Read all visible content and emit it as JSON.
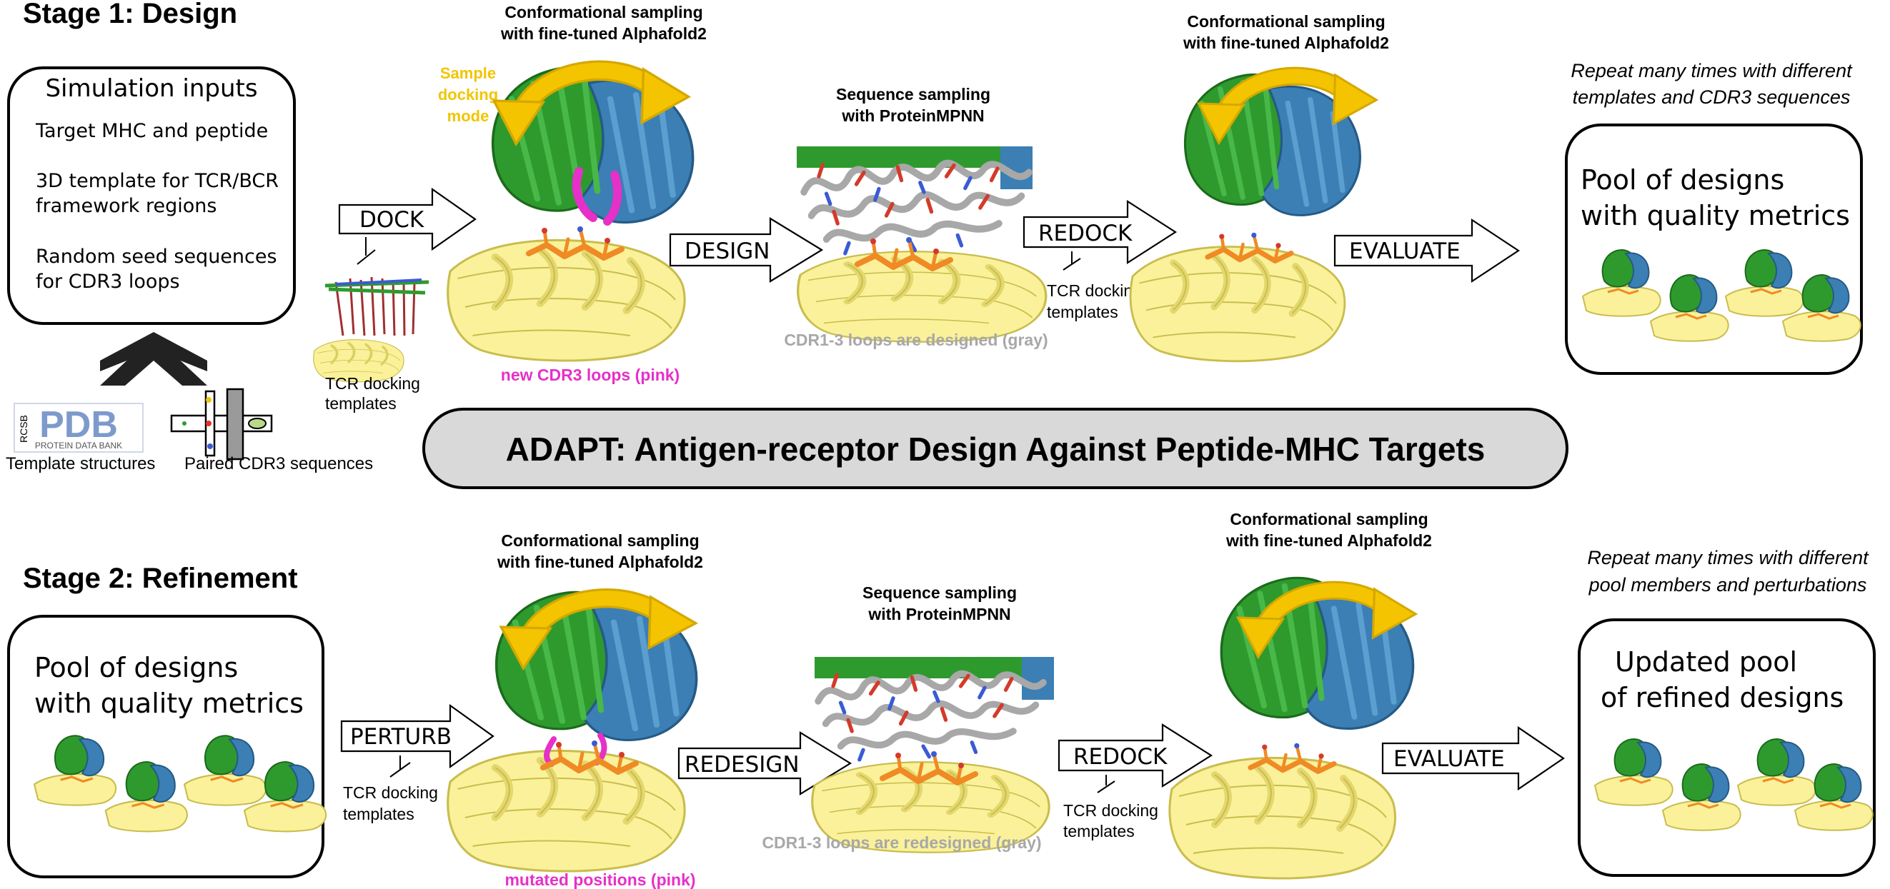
{
  "title": "ADAPT: Antigen-receptor Design Against Peptide-MHC Targets",
  "stage1": {
    "heading": "Stage 1: Design",
    "inputs_box": {
      "title": "Simulation inputs",
      "items": [
        [
          "Target MHC and peptide"
        ],
        [
          "3D template for TCR/BCR",
          "framework regions"
        ],
        [
          "Random seed sequences",
          "for CDR3 loops"
        ]
      ]
    },
    "sources": {
      "pdb_logo_text": "PDB",
      "pdb_logo_rcsb": "RCSB",
      "pdb_logo_sub": "PROTEIN DATA BANK",
      "pdb_caption": "Template structures",
      "cdr3_caption": "Paired CDR3 sequences"
    },
    "dock_label": "DOCK",
    "dock_templates": [
      "TCR docking",
      "templates"
    ],
    "conf_sampling_1": [
      "Conformational sampling",
      "with fine-tuned Alphafold2"
    ],
    "sample_docking_mode": [
      "Sample",
      "docking",
      "mode"
    ],
    "new_cdr3_note": "new CDR3 loops (pink)",
    "design_label": "DESIGN",
    "seq_sampling": [
      "Sequence sampling",
      "with ProteinMPNN"
    ],
    "cdr_designed_note": "CDR1-3 loops are designed (gray)",
    "redock_label": "REDOCK",
    "redock_templates": [
      "TCR docking",
      "templates"
    ],
    "conf_sampling_2": [
      "Conformational sampling",
      "with fine-tuned Alphafold2"
    ],
    "evaluate_label": "EVALUATE",
    "repeat_note": [
      "Repeat many times with different",
      "templates and CDR3 sequences"
    ],
    "pool_box": [
      "Pool of designs",
      "with quality metrics"
    ]
  },
  "stage2": {
    "heading": "Stage 2: Refinement",
    "pool_box": [
      "Pool of designs",
      "with quality metrics"
    ],
    "perturb_label": "PERTURB",
    "perturb_templates": [
      "TCR docking",
      "templates"
    ],
    "conf_sampling_1": [
      "Conformational sampling",
      "with fine-tuned Alphafold2"
    ],
    "mutated_note": "mutated positions (pink)",
    "redesign_label": "REDESIGN",
    "seq_sampling": [
      "Sequence sampling",
      "with ProteinMPNN"
    ],
    "cdr_redesigned_note": "CDR1-3 loops are redesigned (gray)",
    "redock_label": "REDOCK",
    "redock_templates": [
      "TCR docking",
      "templates"
    ],
    "conf_sampling_2": [
      "Conformational sampling",
      "with fine-tuned Alphafold2"
    ],
    "evaluate_label": "EVALUATE",
    "repeat_note": [
      "Repeat many times with different",
      "pool members and perturbations"
    ],
    "updated_box": [
      "Updated pool",
      "of refined designs"
    ]
  },
  "colors": {
    "green_chain": "#2e9a2e",
    "blue_chain": "#3b7fb5",
    "mhc_yellow": "#faf19a",
    "mhc_outline": "#c9bd4e",
    "gold_arrow": "#f5c400",
    "pink": "#e630c8",
    "gray_loops": "#a8a8a8",
    "orange_peptide": "#f08a24"
  }
}
